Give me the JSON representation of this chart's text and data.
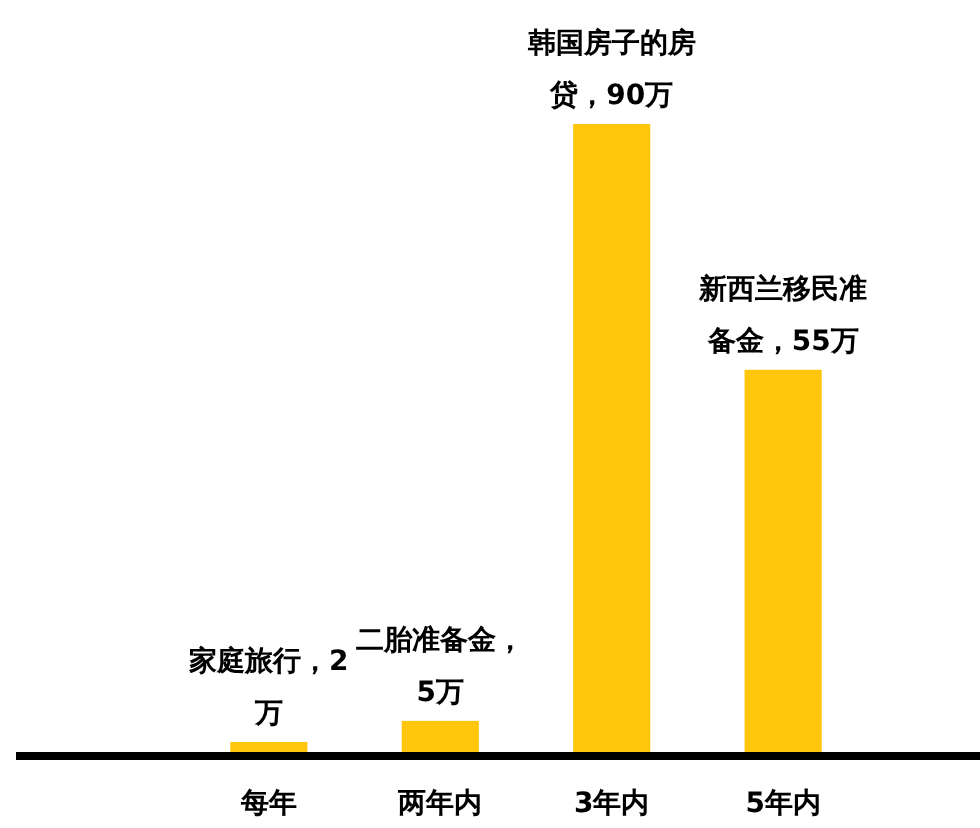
{
  "chart_data": {
    "type": "bar",
    "categories": [
      "每年",
      "两年内",
      "3年内",
      "5年内"
    ],
    "values": [
      2,
      5,
      90,
      55
    ],
    "value_labels": [
      "家庭旅行，2万",
      "二胎准备金，5万",
      "韩国房子的房贷，90万",
      "新西兰移民准备金，55万"
    ],
    "color": "#ffc60b"
  }
}
